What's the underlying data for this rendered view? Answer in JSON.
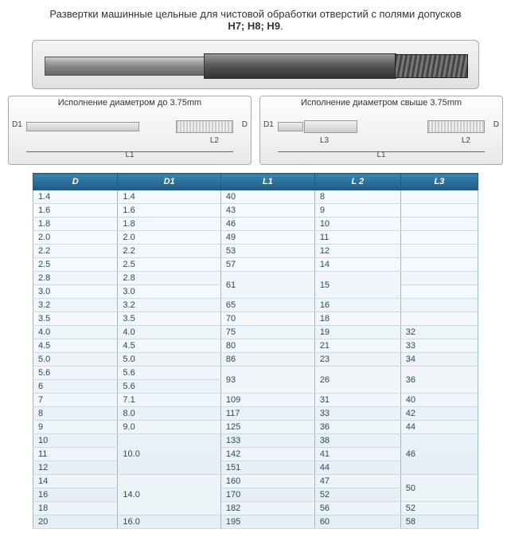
{
  "title": {
    "line": "Развертки машинные цельные для чистовой обработки отверстий с полями допусков",
    "bold": "H7; H8; H9"
  },
  "diagram_left": {
    "label": "Исполнение диаметром до 3.75mm",
    "d": "D",
    "d1": "D1",
    "l1": "L1",
    "l2": "L2"
  },
  "diagram_right": {
    "label": "Исполнение диаметром свыше 3.75mm",
    "d": "D",
    "d1": "D1",
    "l1": "L1",
    "l2": "L2",
    "l3": "L3"
  },
  "table": {
    "columns": [
      "D",
      "D1",
      "L1",
      "L 2",
      "L3"
    ],
    "rows": [
      {
        "D": "1.4",
        "D1": "1.4",
        "L1": "40",
        "L2": "8",
        "L3": ""
      },
      {
        "D": "1.6",
        "D1": "1.6",
        "L1": "43",
        "L2": "9",
        "L3": ""
      },
      {
        "D": "1.8",
        "D1": "1.8",
        "L1": "46",
        "L2": "10",
        "L3": ""
      },
      {
        "D": "2.0",
        "D1": "2.0",
        "L1": "49",
        "L2": "11",
        "L3": ""
      },
      {
        "D": "2.2",
        "D1": "2.2",
        "L1": "53",
        "L2": "12",
        "L3": ""
      },
      {
        "D": "2.5",
        "D1": "2.5",
        "L1": "57",
        "L2": "14",
        "L3": ""
      },
      {
        "D": "2.8",
        "D1": "2.8",
        "span_l1": true,
        "L1": "61",
        "span_l2": true,
        "L2": "15",
        "L3": ""
      },
      {
        "D": "3.0",
        "D1": "3.0",
        "L3": ""
      },
      {
        "D": "3.2",
        "D1": "3.2",
        "L1": "65",
        "L2": "16",
        "L3": ""
      },
      {
        "D": "3.5",
        "D1": "3.5",
        "L1": "70",
        "L2": "18",
        "L3": ""
      },
      {
        "D": "4.0",
        "D1": "4.0",
        "L1": "75",
        "L2": "19",
        "L3": "32"
      },
      {
        "D": "4.5",
        "D1": "4.5",
        "L1": "80",
        "L2": "21",
        "L3": "33"
      },
      {
        "D": "5.0",
        "D1": "5.0",
        "L1": "86",
        "L2": "23",
        "L3": "34"
      },
      {
        "D": "5.6",
        "D1": "5.6",
        "span_l1": true,
        "L1": "93",
        "span_l2": true,
        "L2": "26",
        "span_l3": true,
        "L3": "36"
      },
      {
        "D": "6",
        "D1": "5.6"
      },
      {
        "D": "7",
        "D1": "7.1",
        "L1": "109",
        "L2": "31",
        "L3": "40"
      },
      {
        "D": "8",
        "D1": "8.0",
        "L1": "117",
        "L2": "33",
        "L3": "42"
      },
      {
        "D": "9",
        "D1": "9.0",
        "L1": "125",
        "L2": "36",
        "L3": "44"
      },
      {
        "D": "10",
        "span_d1": 3,
        "D1": "10.0",
        "L1": "133",
        "L2": "38",
        "span_l3": 3,
        "L3": "46"
      },
      {
        "D": "11",
        "L1": "142",
        "L2": "41"
      },
      {
        "D": "12",
        "L1": "151",
        "L2": "44"
      },
      {
        "D": "14",
        "span_d1": 3,
        "D1": "14.0",
        "L1": "160",
        "L2": "47",
        "span_l3": true,
        "L3": "50"
      },
      {
        "D": "16",
        "L1": "170",
        "L2": "52"
      },
      {
        "D": "18",
        "L1": "182",
        "L2": "56",
        "L3": "52"
      },
      {
        "D": "20",
        "D1": "16.0",
        "L1": "195",
        "L2": "60",
        "L3": "58"
      }
    ]
  }
}
